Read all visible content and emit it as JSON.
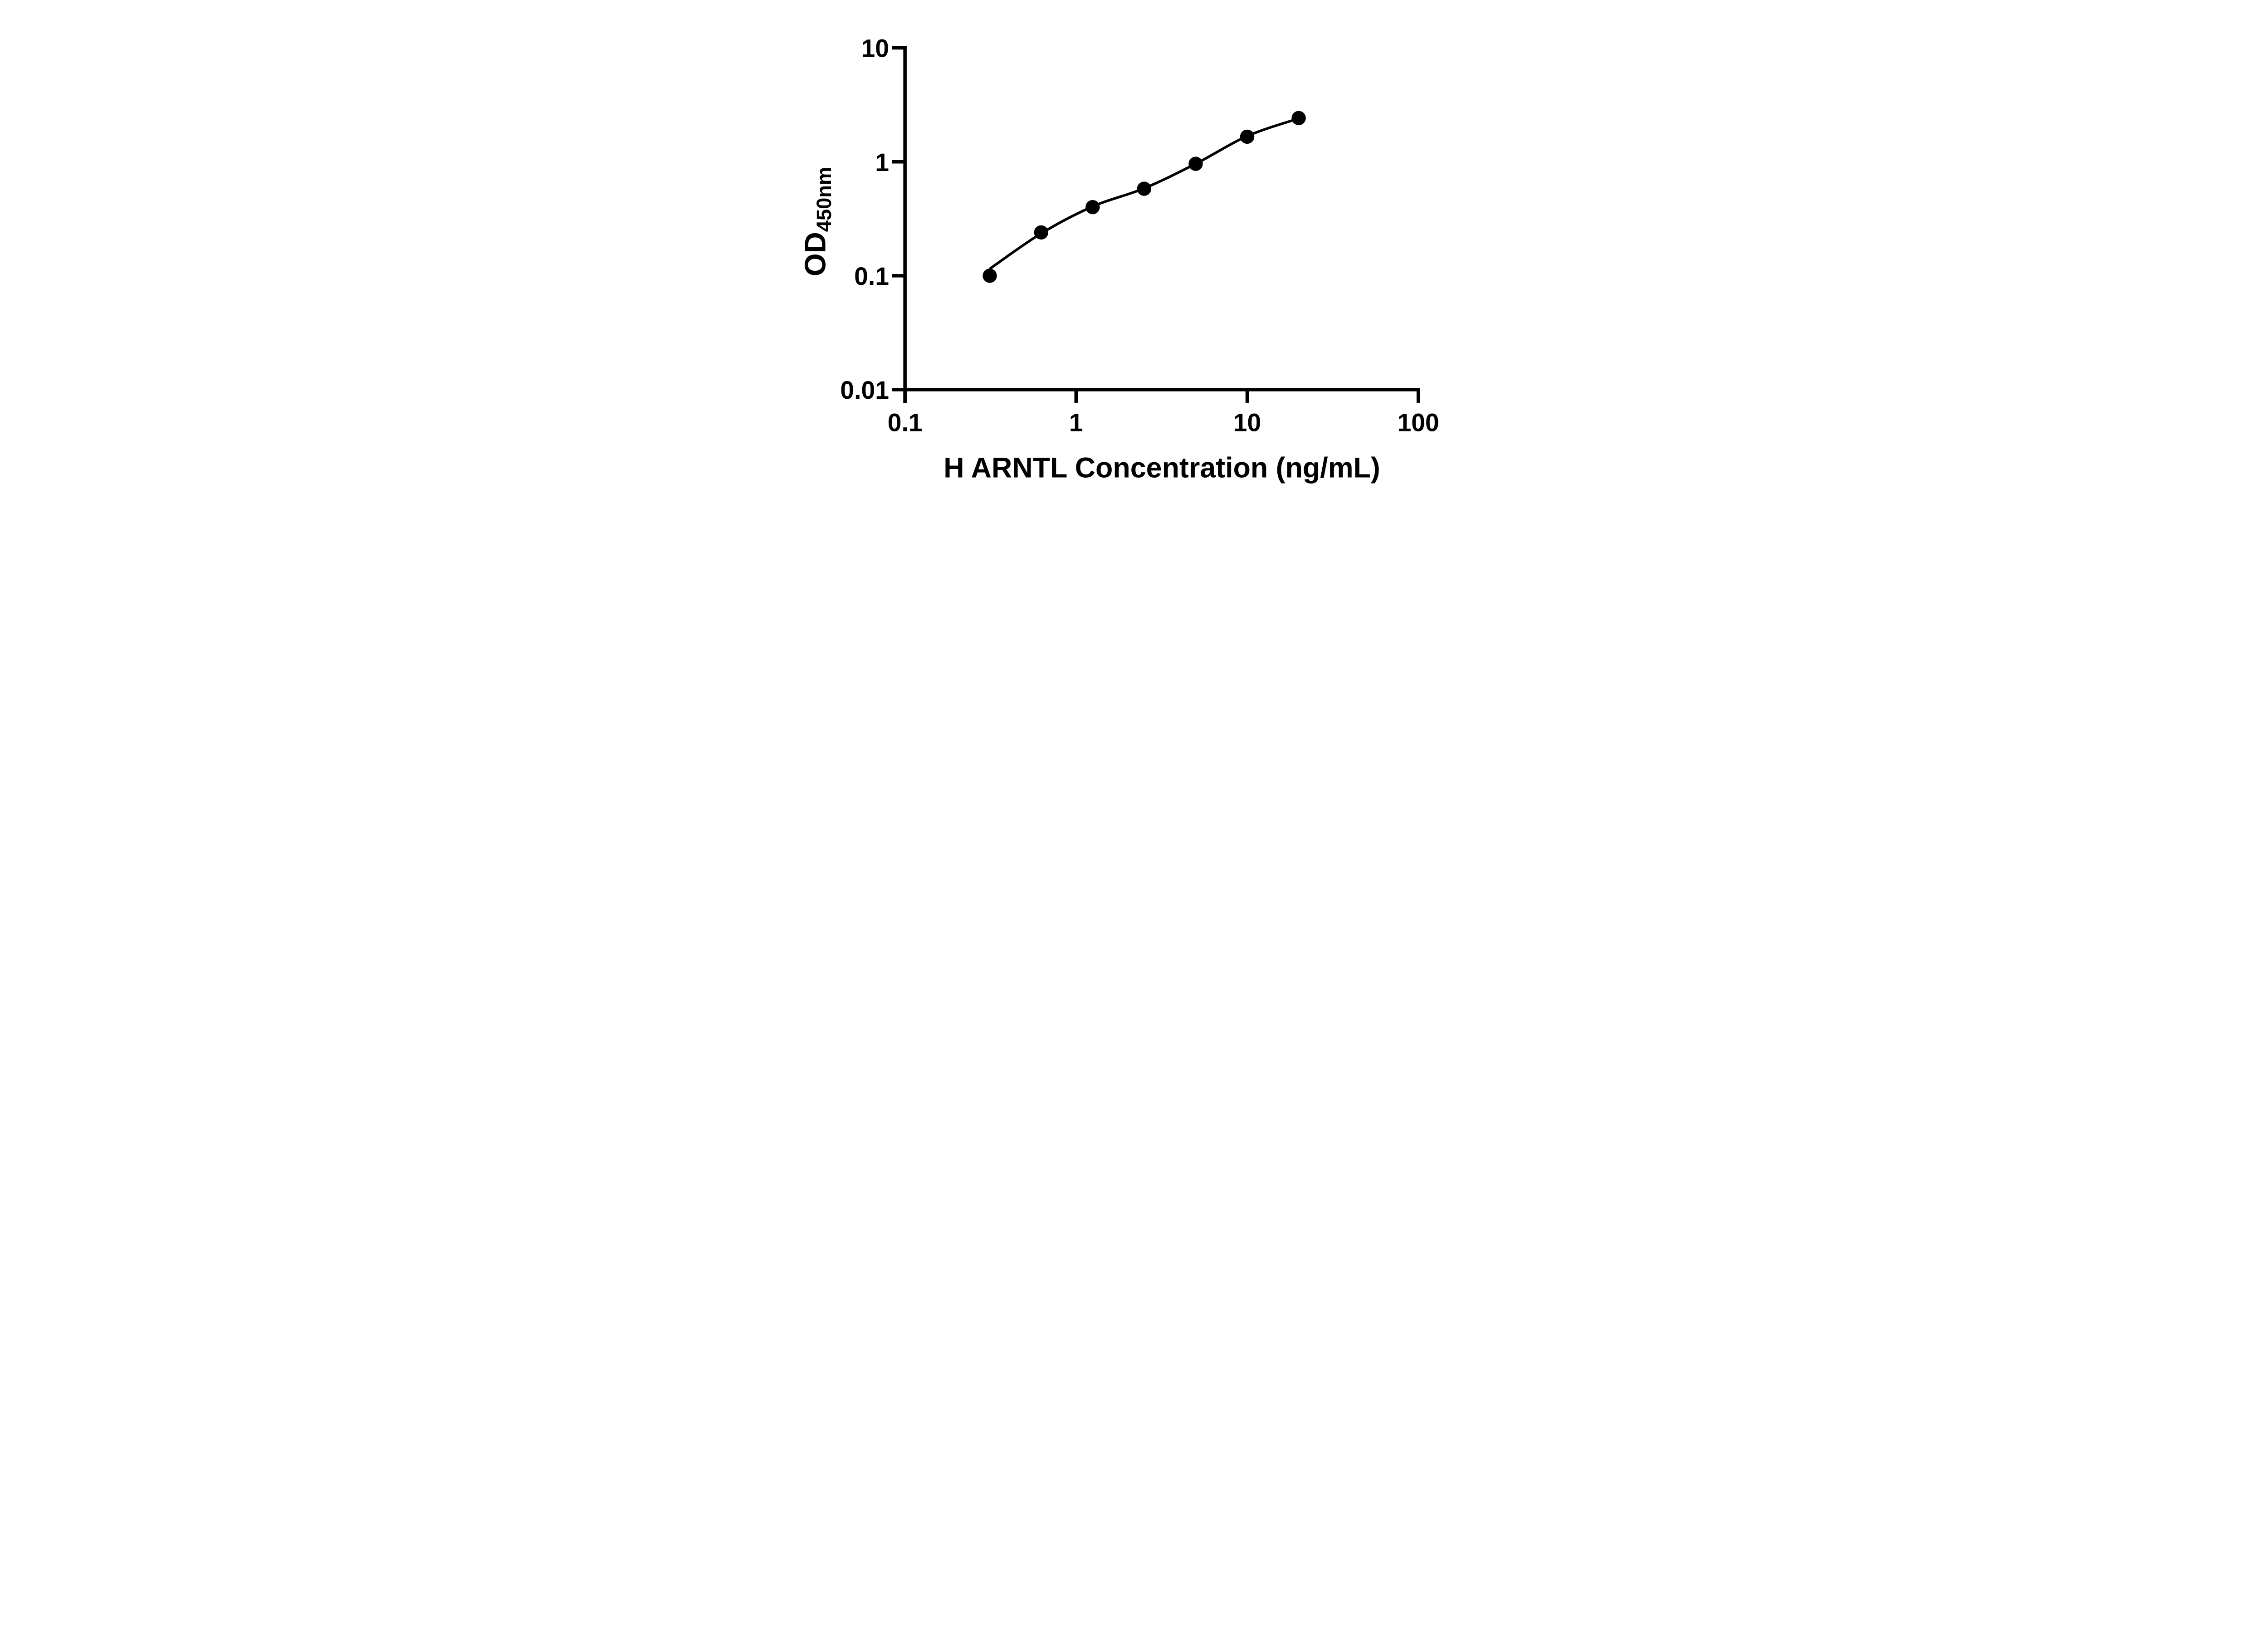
{
  "figure": {
    "background_color": "#ffffff",
    "ink_color": "#000000"
  },
  "chart_data": {
    "type": "scatter",
    "title": "",
    "xlabel": "H ARNTL Concentration (ng/mL)",
    "ylabel_main": "OD",
    "ylabel_sub": "450nm",
    "x_scale": "log10",
    "y_scale": "log10",
    "xlim": [
      0.1,
      100
    ],
    "ylim": [
      0.01,
      10
    ],
    "grid": "off",
    "legend": "none",
    "x_ticks": [
      {
        "value": 0.1,
        "label": "0.1"
      },
      {
        "value": 1,
        "label": "1"
      },
      {
        "value": 10,
        "label": "10"
      },
      {
        "value": 100,
        "label": "100"
      }
    ],
    "y_ticks": [
      {
        "value": 10,
        "label": "10"
      },
      {
        "value": 1,
        "label": "1"
      },
      {
        "value": 0.1,
        "label": "0.1"
      },
      {
        "value": 0.01,
        "label": "0.01"
      }
    ],
    "series": [
      {
        "name": "standard-curve-points",
        "marker": "filled-circle",
        "color": "#000000",
        "points": [
          {
            "x": 0.313,
            "od": 0.1
          },
          {
            "x": 0.625,
            "od": 0.24
          },
          {
            "x": 1.25,
            "od": 0.4
          },
          {
            "x": 2.5,
            "od": 0.58
          },
          {
            "x": 5,
            "od": 0.96
          },
          {
            "x": 10,
            "od": 1.66
          },
          {
            "x": 20,
            "od": 2.42
          }
        ]
      }
    ],
    "fit_curve": {
      "color": "#000000",
      "points": [
        {
          "x": 0.313,
          "od": 0.115
        },
        {
          "x": 0.625,
          "od": 0.235
        },
        {
          "x": 1.25,
          "od": 0.405
        },
        {
          "x": 2.5,
          "od": 0.585
        },
        {
          "x": 5,
          "od": 0.96
        },
        {
          "x": 10,
          "od": 1.68
        },
        {
          "x": 20,
          "od": 2.4
        }
      ]
    }
  }
}
